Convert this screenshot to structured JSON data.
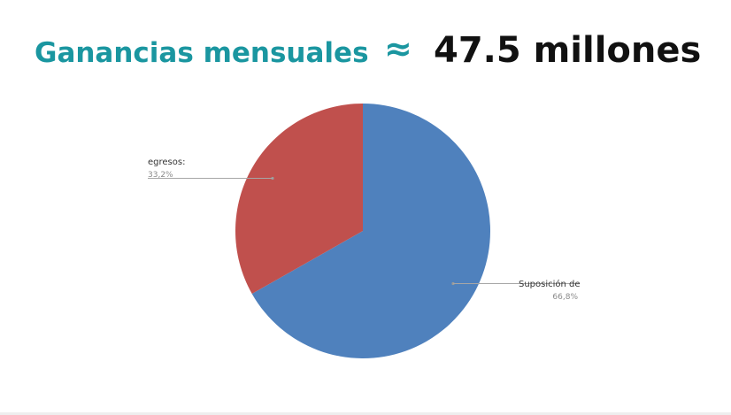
{
  "heading": {
    "title": "Ganancias mensuales",
    "approx_symbol": "≈",
    "value": "47.5 millones"
  },
  "colors": {
    "title": "#1a96a0",
    "value": "#111111"
  },
  "chart_data": {
    "type": "pie",
    "title": "",
    "slices": [
      {
        "label": "Suposición de",
        "value": 66.8,
        "display": "66,8%",
        "color": "#4f81bd"
      },
      {
        "label": "egresos:",
        "value": 33.2,
        "display": "33,2%",
        "color": "#c0504d"
      }
    ],
    "start_angle_deg": 0,
    "direction": "clockwise",
    "legend": "none",
    "label_style": "callout with leader lines"
  }
}
